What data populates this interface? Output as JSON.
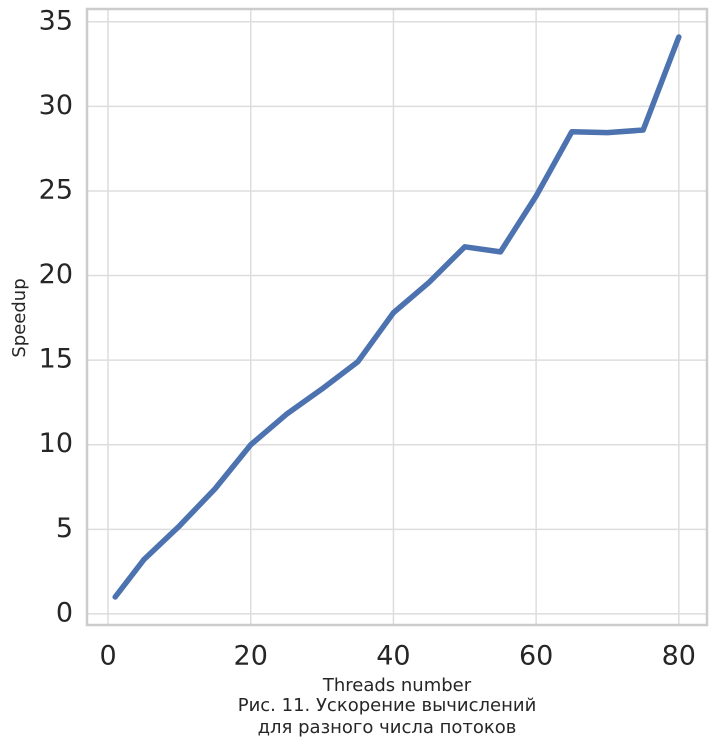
{
  "chart_data": {
    "type": "line",
    "x": [
      1,
      5,
      10,
      15,
      20,
      25,
      30,
      35,
      40,
      45,
      50,
      55,
      60,
      65,
      70,
      75,
      80
    ],
    "series": [
      {
        "name": "Speedup",
        "color": "#4c72b0",
        "values": [
          1.0,
          3.2,
          5.2,
          7.4,
          10.0,
          11.8,
          13.3,
          14.9,
          17.8,
          19.6,
          21.7,
          21.4,
          24.7,
          28.5,
          28.45,
          28.6,
          34.1
        ]
      }
    ],
    "xlim": [
      -2.95,
      83.95
    ],
    "xticks": [
      0,
      20,
      40,
      60,
      80
    ],
    "ylim": [
      -0.655,
      35.755
    ],
    "yticks": [
      0,
      5,
      10,
      15,
      20,
      25,
      30,
      35
    ],
    "xlabel": "Threads number",
    "ylabel": "Speedup",
    "caption": [
      "Рис. 11. Ускорение вычислений",
      "для разного числа потоков"
    ],
    "grid": true
  }
}
